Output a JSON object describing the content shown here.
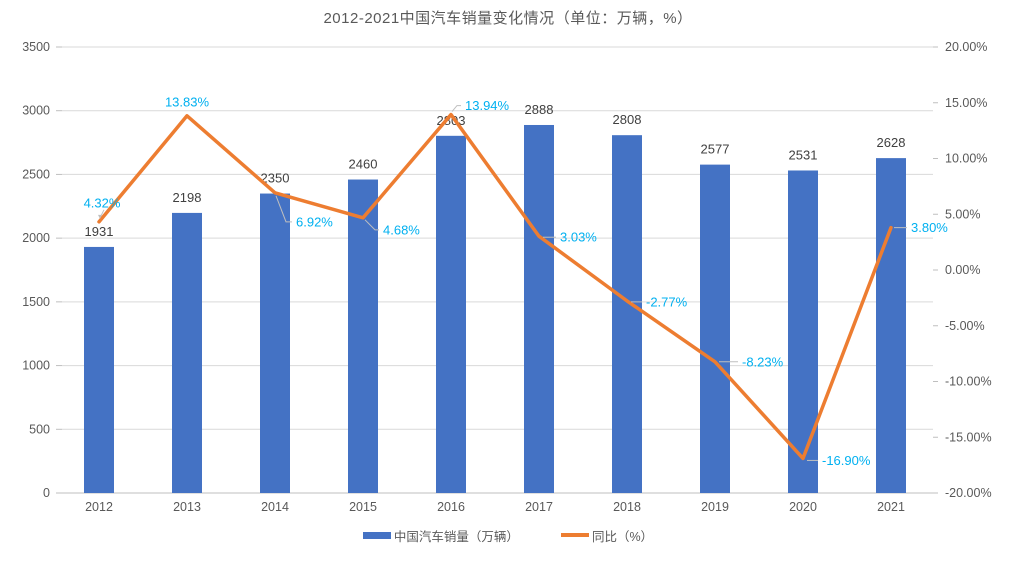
{
  "chart_data": {
    "type": "bar",
    "subtype": "bar-line-combo",
    "title": "2012-2021中国汽车销量变化情况（单位：万辆，%）",
    "categories": [
      "2012",
      "2013",
      "2014",
      "2015",
      "2016",
      "2017",
      "2018",
      "2019",
      "2020",
      "2021"
    ],
    "series": [
      {
        "name": "中国汽车销量（万辆）",
        "type": "bar",
        "axis": "left",
        "values": [
          1931,
          2198,
          2350,
          2460,
          2803,
          2888,
          2808,
          2577,
          2531,
          2628
        ],
        "value_labels": [
          "1931",
          "2198",
          "2350",
          "2460",
          "2803",
          "2888",
          "2808",
          "2577",
          "2531",
          "2628"
        ],
        "color": "#4472C4",
        "label_color": "#404040"
      },
      {
        "name": "同比（%）",
        "type": "line",
        "axis": "right",
        "values": [
          4.32,
          13.83,
          6.92,
          4.68,
          13.94,
          3.03,
          -2.77,
          -8.23,
          -16.9,
          3.8
        ],
        "value_labels": [
          "4.32%",
          "13.83%",
          "6.92%",
          "4.68%",
          "13.94%",
          "3.03%",
          "-2.77%",
          "-8.23%",
          "-16.90%",
          "3.80%"
        ],
        "color": "#ED7D31",
        "label_color": "#00B0F0"
      }
    ],
    "left_axis": {
      "min": 0,
      "max": 3500,
      "step": 500,
      "tick_labels": [
        "3500",
        "3000",
        "2500",
        "2000",
        "1500",
        "1000",
        "500",
        "0"
      ]
    },
    "right_axis": {
      "min": -20,
      "max": 20,
      "step": 5,
      "tick_labels": [
        "20.00%",
        "15.00%",
        "10.00%",
        "5.00%",
        "0.00%",
        "-5.00%",
        "-10.00%",
        "-15.00%",
        "-20.00%"
      ]
    },
    "grid": true,
    "legend_position": "bottom",
    "colors": {
      "gridline": "#D9D9D9",
      "axis_line": "#BFBFBF",
      "leader_line": "#BFBFBF",
      "axis_text": "#595959",
      "title_text": "#595959"
    }
  }
}
